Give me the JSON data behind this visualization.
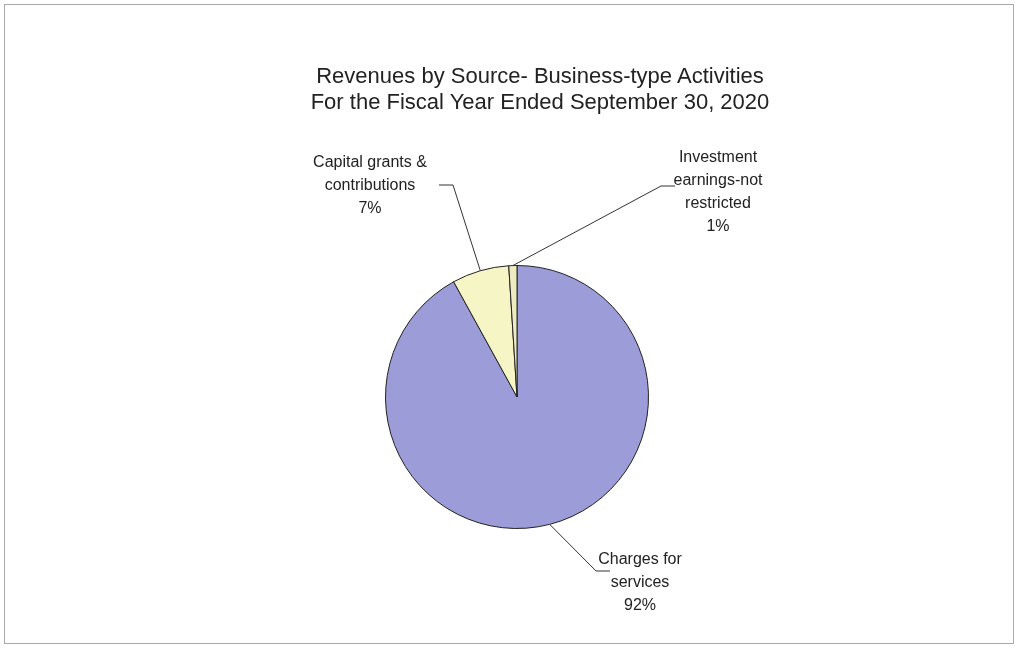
{
  "chart_data": {
    "type": "pie",
    "title": "Revenues by Source- Business-type Activities",
    "subtitle": "For the Fiscal Year Ended September 30, 2020",
    "categories": [
      "Charges for services",
      "Capital grants & contributions",
      "Investment earnings-not restricted"
    ],
    "values": [
      92,
      7,
      1
    ],
    "value_labels": [
      "92%",
      "7%",
      "1%"
    ],
    "colors": [
      "#9c9cd8",
      "#f6f5c6",
      "#ecebc2"
    ],
    "legend": false
  }
}
